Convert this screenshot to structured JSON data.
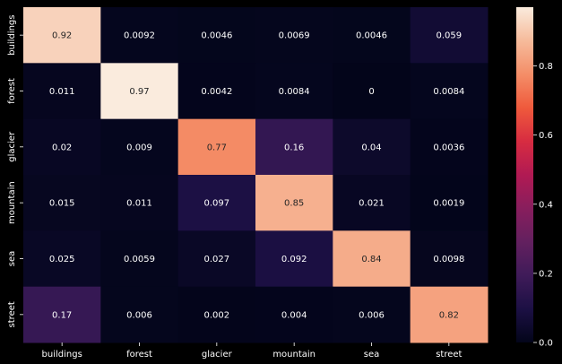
{
  "chart_data": {
    "type": "heatmap",
    "title": "",
    "xlabel": "",
    "ylabel": "",
    "categories_x": [
      "buildings",
      "forest",
      "glacier",
      "mountain",
      "sea",
      "street"
    ],
    "categories_y": [
      "buildings",
      "forest",
      "glacier",
      "mountain",
      "sea",
      "street"
    ],
    "values": [
      [
        0.92,
        0.0092,
        0.0046,
        0.0069,
        0.0046,
        0.059
      ],
      [
        0.011,
        0.97,
        0.0042,
        0.0084,
        0,
        0.0084
      ],
      [
        0.02,
        0.009,
        0.77,
        0.16,
        0.04,
        0.0036
      ],
      [
        0.015,
        0.011,
        0.097,
        0.85,
        0.021,
        0.0019
      ],
      [
        0.025,
        0.0059,
        0.027,
        0.092,
        0.84,
        0.0098
      ],
      [
        0.17,
        0.006,
        0.002,
        0.004,
        0.006,
        0.82
      ]
    ],
    "labels": [
      [
        "0.92",
        "0.0092",
        "0.0046",
        "0.0069",
        "0.0046",
        "0.059"
      ],
      [
        "0.011",
        "0.97",
        "0.0042",
        "0.0084",
        "0",
        "0.0084"
      ],
      [
        "0.02",
        "0.009",
        "0.77",
        "0.16",
        "0.04",
        "0.0036"
      ],
      [
        "0.015",
        "0.011",
        "0.097",
        "0.85",
        "0.021",
        "0.0019"
      ],
      [
        "0.025",
        "0.0059",
        "0.027",
        "0.092",
        "0.84",
        "0.0098"
      ],
      [
        "0.17",
        "0.006",
        "0.002",
        "0.004",
        "0.006",
        "0.82"
      ]
    ],
    "colormap": "rocket",
    "vmin": 0,
    "vmax": 0.97,
    "colorbar": {
      "ticks": [
        0.0,
        0.2,
        0.4,
        0.6,
        0.8
      ],
      "tick_labels": [
        "0.0",
        "0.2",
        "0.4",
        "0.6",
        "0.8"
      ]
    }
  },
  "colors": {
    "background": "#000000",
    "text": "#ffffff",
    "label_dark": "#262626"
  }
}
